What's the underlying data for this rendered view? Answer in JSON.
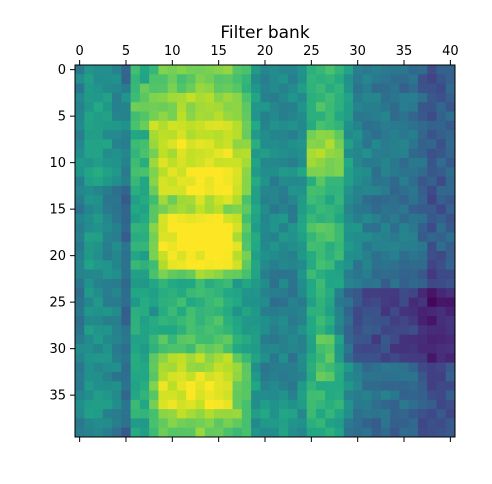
{
  "chart_data": {
    "type": "heatmap",
    "title": "Filter bank",
    "colormap": "viridis",
    "value_range": [
      0,
      1
    ],
    "x_axis": {
      "position": "top",
      "range": [
        -0.5,
        40.5
      ],
      "tick_values": [
        0,
        5,
        10,
        15,
        20,
        25,
        30,
        35,
        40
      ],
      "tick_labels": [
        "0",
        "5",
        "10",
        "15",
        "20",
        "25",
        "30",
        "35",
        "40"
      ]
    },
    "y_axis": {
      "inverted": true,
      "range": [
        -0.5,
        39.5
      ],
      "tick_values": [
        0,
        5,
        10,
        15,
        20,
        25,
        30,
        35
      ],
      "tick_labels": [
        "0",
        "5",
        "10",
        "15",
        "20",
        "25",
        "30",
        "35"
      ]
    },
    "grid": false,
    "rows": 40,
    "cols": 41,
    "col_profile": [
      0.44,
      0.53,
      0.53,
      0.5,
      0.46,
      0.36,
      0.62,
      0.62,
      0.72,
      0.8,
      0.8,
      0.82,
      0.83,
      0.85,
      0.84,
      0.84,
      0.82,
      0.75,
      0.72,
      0.54,
      0.47,
      0.44,
      0.46,
      0.44,
      0.5,
      0.64,
      0.66,
      0.64,
      0.61,
      0.5,
      0.43,
      0.4,
      0.38,
      0.38,
      0.36,
      0.36,
      0.35,
      0.3,
      0.24,
      0.26,
      0.28
    ],
    "row_offset": [
      0.02,
      0.0,
      0.0,
      0.02,
      0.02,
      0.02,
      0.02,
      0.02,
      0.04,
      0.04,
      0.04,
      0.04,
      0.02,
      0.02,
      0.0,
      0.0,
      0.02,
      0.04,
      0.04,
      0.04,
      0.02,
      0.0,
      -0.02,
      -0.04,
      -0.04,
      -0.04,
      -0.04,
      -0.02,
      -0.02,
      -0.02,
      -0.02,
      -0.02,
      -0.02,
      -0.02,
      0.0,
      0.0,
      0.0,
      -0.02,
      -0.04,
      -0.06
    ],
    "regions": [
      {
        "rows": [
          0,
          2
        ],
        "cols": [
          8,
          19
        ],
        "value": -0.06
      },
      {
        "rows": [
          2,
          6
        ],
        "cols": [
          5,
          8
        ],
        "value": 0.1
      },
      {
        "rows": [
          6,
          13
        ],
        "cols": [
          8,
          18
        ],
        "value": 0.08
      },
      {
        "rows": [
          7,
          11
        ],
        "cols": [
          25,
          28
        ],
        "value": 0.16
      },
      {
        "rows": [
          11,
          14
        ],
        "cols": [
          12,
          17
        ],
        "value": 0.08
      },
      {
        "rows": [
          16,
          21
        ],
        "cols": [
          9,
          17
        ],
        "value": 0.14
      },
      {
        "rows": [
          17,
          19
        ],
        "cols": [
          11,
          15
        ],
        "value": 0.08
      },
      {
        "rows": [
          23,
          30
        ],
        "cols": [
          8,
          18
        ],
        "value": -0.14
      },
      {
        "rows": [
          24,
          31
        ],
        "cols": [
          28,
          40
        ],
        "value": -0.14
      },
      {
        "rows": [
          29,
          37
        ],
        "cols": [
          8,
          17
        ],
        "value": 0.06
      },
      {
        "rows": [
          33,
          36
        ],
        "cols": [
          9,
          16
        ],
        "value": 0.06
      },
      {
        "rows": [
          36,
          39
        ],
        "cols": [
          20,
          23
        ],
        "value": 0.12
      },
      {
        "rows": [
          29,
          33
        ],
        "cols": [
          26,
          28
        ],
        "value": 0.08
      },
      {
        "rows": [
          13,
          20
        ],
        "cols": [
          0,
          7
        ],
        "value": -0.06
      }
    ],
    "noise_amplitude": 0.06
  }
}
